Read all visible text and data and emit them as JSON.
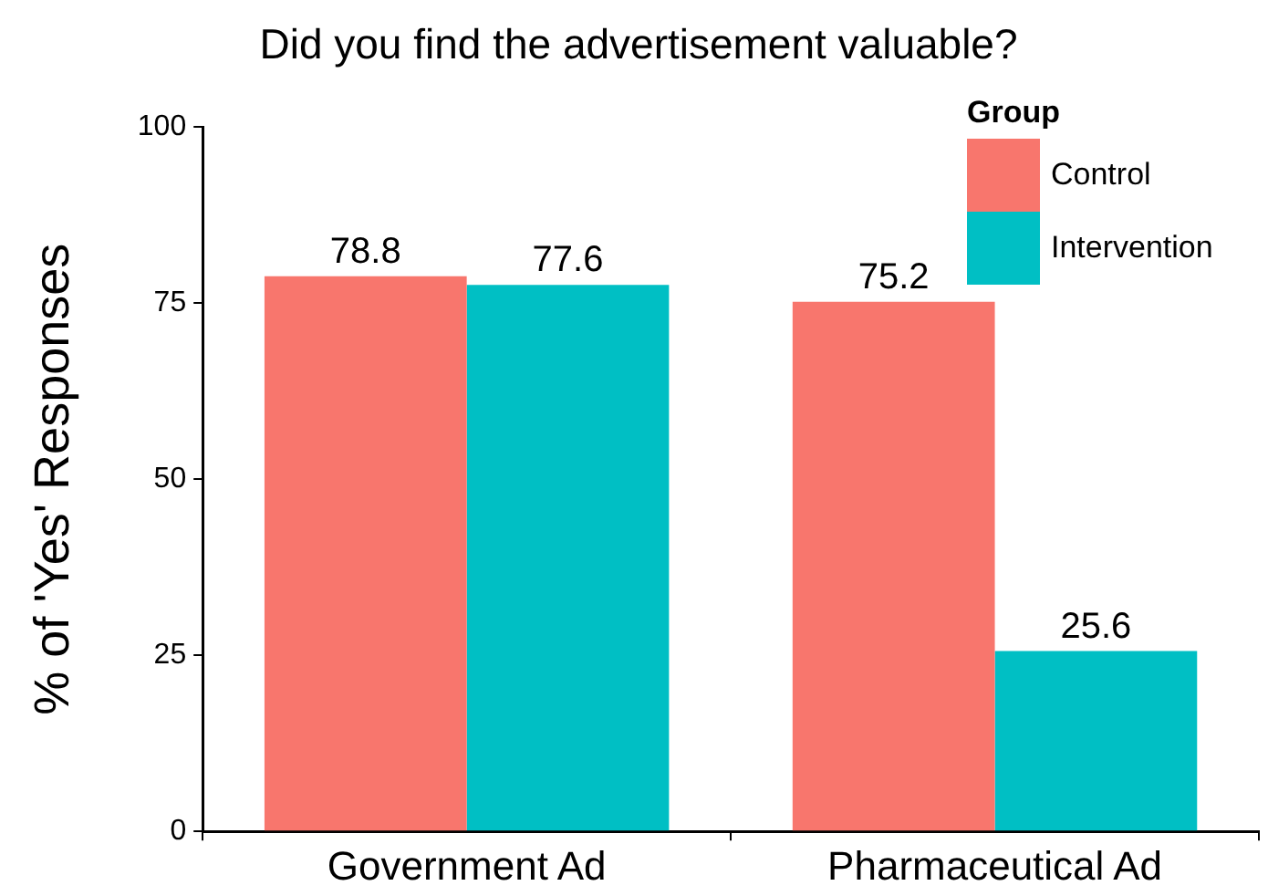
{
  "chart_data": {
    "type": "bar",
    "title": "Did you find the advertisement valuable?",
    "ylabel": "% of 'Yes' Responses",
    "legend_title": "Group",
    "categories": [
      "Government Ad",
      "Pharmaceutical Ad"
    ],
    "series": [
      {
        "name": "Control",
        "color": "#f8766d",
        "values": [
          78.8,
          75.2
        ]
      },
      {
        "name": "Intervention",
        "color": "#00bfc4",
        "values": [
          77.6,
          25.6
        ]
      }
    ],
    "ylim": [
      0,
      100
    ],
    "yticks": [
      0,
      25,
      50,
      75,
      100
    ],
    "grid": false,
    "legend": "top right",
    "data_labels": true
  }
}
